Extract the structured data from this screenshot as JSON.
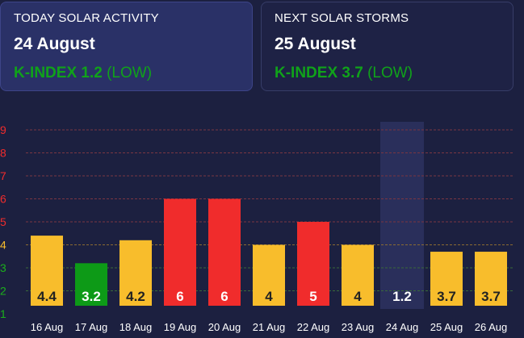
{
  "today": {
    "heading": "TODAY SOLAR ACTIVITY",
    "date": "24 August",
    "kindex_label": "K-INDEX 1.2",
    "kindex_level": "(LOW)"
  },
  "next": {
    "heading": "NEXT SOLAR STORMS",
    "date": "25 August",
    "kindex_label": "K-INDEX 3.7",
    "kindex_level": "(LOW)"
  },
  "colors": {
    "background": "#1c2040",
    "low": "#f8bd2c",
    "quiet": "#0d9a17",
    "storm": "#f02c2c",
    "highlight": "#2d3260"
  },
  "chart_data": {
    "type": "bar",
    "categories": [
      "16 Aug",
      "17 Aug",
      "18 Aug",
      "19 Aug",
      "20 Aug",
      "21 Aug",
      "22 Aug",
      "23 Aug",
      "24 Aug",
      "25 Aug",
      "26 Aug"
    ],
    "values": [
      4.4,
      3.2,
      4.2,
      6,
      6,
      4,
      5,
      4,
      1.2,
      3.7,
      3.7
    ],
    "value_labels": [
      "4.4",
      "3.2",
      "4.2",
      "6",
      "6",
      "4",
      "5",
      "4",
      "1.2",
      "3.7",
      "3.7"
    ],
    "bar_colors": [
      "#f8bd2c",
      "#0d9a17",
      "#f8bd2c",
      "#f02c2c",
      "#f02c2c",
      "#f8bd2c",
      "#f02c2c",
      "#f8bd2c",
      "#0d9a17",
      "#f8bd2c",
      "#f8bd2c"
    ],
    "highlighted_category": "24 Aug",
    "y_ticks": [
      "1",
      "2",
      "3",
      "4",
      "5",
      "6",
      "7",
      "8",
      "9"
    ],
    "y_tick_colors": [
      "#1bb01b",
      "#1bb01b",
      "#1bb01b",
      "#f8bd2c",
      "#f02c2c",
      "#f02c2c",
      "#f02c2c",
      "#f02c2c",
      "#f02c2c"
    ],
    "ylim": [
      1,
      9
    ],
    "grid": true,
    "xlabel": "",
    "ylabel": "",
    "title": ""
  }
}
